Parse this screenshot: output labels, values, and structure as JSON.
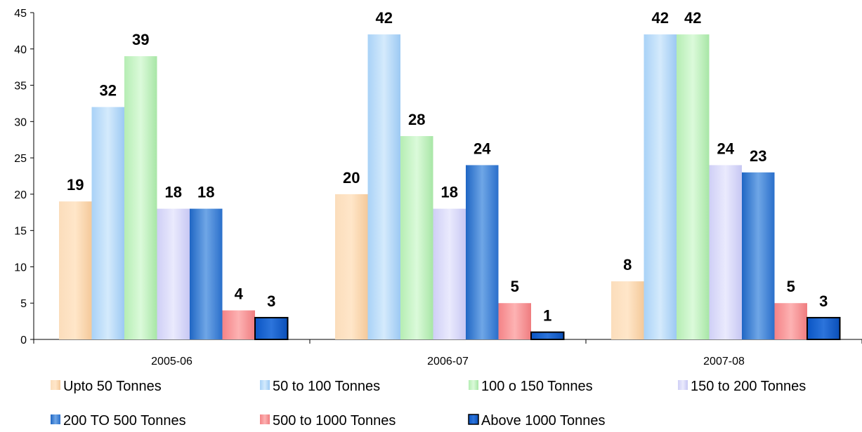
{
  "chart_data": {
    "type": "bar",
    "title": "",
    "xlabel": "",
    "ylabel": "",
    "ylim": [
      0,
      45
    ],
    "yticks": [
      0,
      5,
      10,
      15,
      20,
      25,
      30,
      35,
      40,
      45
    ],
    "grid": false,
    "legend_position": "bottom",
    "categories": [
      "2005-06",
      "2006-07",
      "2007-08"
    ],
    "series": [
      {
        "name": "Upto 50 Tonnes",
        "values": [
          19,
          20,
          8
        ],
        "color": "#FAD4A8"
      },
      {
        "name": "50 to 100 Tonnes",
        "values": [
          32,
          42,
          42
        ],
        "color": "#B9DCF9"
      },
      {
        "name": "100 o 150 Tonnes",
        "values": [
          39,
          28,
          42
        ],
        "color": "#C6F3C4"
      },
      {
        "name": "150 to 200 Tonnes",
        "values": [
          18,
          18,
          24
        ],
        "color": "#DCDCFA"
      },
      {
        "name": "200 TO 500 Tonnes",
        "values": [
          18,
          24,
          23
        ],
        "color": "#3C7FD2"
      },
      {
        "name": "500 to 1000 Tonnes",
        "values": [
          4,
          5,
          5
        ],
        "color": "#F79496"
      },
      {
        "name": "Above 1000 Tonnes",
        "values": [
          3,
          1,
          3
        ],
        "color": "#0A55C4"
      }
    ]
  }
}
